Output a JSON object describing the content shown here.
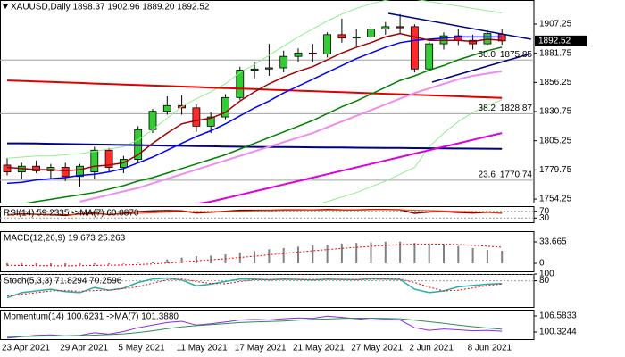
{
  "chart_data": [
    {
      "type": "candlestick",
      "header": "XAUUSD,Daily  1898.37 1902.96 1889.20 1892.52",
      "categories": [
        "23 Apr 2021",
        null,
        null,
        null,
        "29 Apr 2021",
        null,
        null,
        null,
        "5 May 2021",
        null,
        null,
        null,
        "11 May 2021",
        null,
        null,
        null,
        "17 May 2021",
        null,
        null,
        null,
        "21 May 2021",
        null,
        null,
        null,
        "27 May 2021",
        null,
        null,
        null,
        "2 Jun 2021",
        null,
        null,
        null,
        "8 Jun 2021",
        null,
        null
      ],
      "open": [
        1784,
        1778,
        1783,
        1779,
        1782,
        1774,
        1778,
        1797,
        1782,
        1789,
        1815,
        1831,
        1836,
        1834,
        1818,
        1826,
        1843,
        1867,
        1868,
        1869,
        1879,
        1882,
        1881,
        1898,
        1895,
        1896,
        1903,
        1905,
        1905,
        1868,
        1890,
        1897,
        1893,
        1890,
        1898.37
      ],
      "high": [
        1790,
        1786,
        1788,
        1785,
        1786,
        1785,
        1800,
        1799,
        1792,
        1818,
        1833,
        1844,
        1845,
        1837,
        1830,
        1846,
        1870,
        1874,
        1890,
        1884,
        1886,
        1890,
        1900,
        1912,
        1903,
        1905,
        1909,
        1916,
        1907,
        1892,
        1900,
        1903,
        1898,
        1902,
        1902.96
      ],
      "low": [
        1775,
        1772,
        1777,
        1772,
        1770,
        1765,
        1772,
        1778,
        1777,
        1786,
        1812,
        1828,
        1828,
        1813,
        1812,
        1824,
        1841,
        1860,
        1862,
        1865,
        1874,
        1874,
        1878,
        1891,
        1888,
        1893,
        1898,
        1899,
        1865,
        1866,
        1885,
        1889,
        1885,
        1889,
        1889.2
      ],
      "close": [
        1778,
        1783,
        1779,
        1782,
        1774,
        1783,
        1797,
        1782,
        1789,
        1815,
        1831,
        1836,
        1834,
        1818,
        1826,
        1843,
        1867,
        1868,
        1869,
        1879,
        1882,
        1881,
        1898,
        1895,
        1896,
        1903,
        1905,
        1904,
        1868,
        1890,
        1897,
        1893,
        1890,
        1899,
        1892.52
      ],
      "up_color": "#32cd32",
      "down_color": "#ff2a2a",
      "series": [
        {
          "type": "line",
          "color": "#90ee90",
          "width": 1,
          "values": [
            1790,
            1791,
            1792,
            1792,
            1793,
            1794,
            1796,
            1798,
            1800,
            1806,
            1815,
            1825,
            1835,
            1842,
            1848,
            1855,
            1865,
            1872,
            1880,
            1888,
            1896,
            1903,
            1910,
            1916,
            1921,
            1925,
            1928,
            1930,
            1929,
            1927,
            1925,
            1923,
            1921,
            1919,
            1917
          ]
        },
        {
          "type": "line",
          "color": "#90ee90",
          "width": 1,
          "values": [
            null,
            null,
            null,
            null,
            null,
            null,
            null,
            null,
            null,
            null,
            null,
            null,
            null,
            null,
            null,
            null,
            null,
            null,
            null,
            null,
            null,
            1749,
            1752,
            1756,
            1760,
            1765,
            1770,
            1776,
            1782,
            1800,
            1812,
            1822,
            1830,
            1836,
            1841
          ]
        },
        {
          "type": "line",
          "color": "#000080",
          "width": 2,
          "values": [
            1803,
            1803,
            1802.8,
            1802.6,
            1802.4,
            1802.2,
            1802,
            1801.8,
            1801.6,
            1801.4,
            1801.2,
            1801,
            1800.8,
            1800.6,
            1800.4,
            1800.2,
            1800,
            1799.9,
            1799.8,
            1799.7,
            1799.6,
            1799.5,
            1799.4,
            1799.3,
            1799.2,
            1799.1,
            1799,
            1798.9,
            1798.8,
            1798.7,
            1798.6,
            1798.5,
            1798.4,
            1798.3,
            1798.2
          ]
        },
        {
          "type": "line",
          "color": "#e00000",
          "width": 2,
          "values": [
            1858,
            1857.6,
            1857.1,
            1856.7,
            1856.2,
            1855.8,
            1855.3,
            1854.9,
            1854.4,
            1854,
            1853.5,
            1853.1,
            1852.6,
            1852.2,
            1851.7,
            1851.3,
            1850.8,
            1850.4,
            1849.9,
            1849.5,
            1849,
            1848.6,
            1848.1,
            1847.7,
            1847.2,
            1846.8,
            1846.3,
            1845.9,
            1845.4,
            1845,
            1844.5,
            1844.1,
            1843.6,
            1843.2,
            1842.7
          ]
        },
        {
          "type": "line",
          "color": "#dd00dd",
          "width": 2,
          "values": [
            null,
            null,
            null,
            null,
            null,
            null,
            null,
            null,
            null,
            null,
            null,
            null,
            null,
            1750,
            1752,
            1755,
            1758,
            1761,
            1764,
            1767,
            1770,
            1773,
            1776,
            1779,
            1782,
            1785,
            1788,
            1791,
            1794,
            1797,
            1800,
            1803,
            1806,
            1809,
            1812
          ]
        },
        {
          "type": "line",
          "color": "#f08cf0",
          "width": 2,
          "values": [
            null,
            null,
            null,
            null,
            null,
            1752,
            1755,
            1758,
            1761,
            1764,
            1768,
            1772,
            1776,
            1780,
            1784,
            1788,
            1792,
            1796,
            1800,
            1804,
            1808,
            1812,
            1817,
            1822,
            1827,
            1832,
            1837,
            1842,
            1847,
            1851,
            1855,
            1859,
            1862,
            1864,
            1866
          ]
        },
        {
          "type": "line",
          "color": "#008000",
          "width": 1.5,
          "values": [
            null,
            1750,
            1752,
            1754,
            1756,
            1758,
            1760,
            1763,
            1766,
            1770,
            1773,
            1777,
            1781,
            1785,
            1789,
            1793,
            1798,
            1803,
            1808,
            1813,
            1818,
            1823,
            1829,
            1835,
            1840,
            1846,
            1852,
            1858,
            1862,
            1867,
            1871,
            1876,
            1880,
            1884,
            1887
          ]
        },
        {
          "type": "line",
          "color": "#0000ff",
          "width": 1.5,
          "values": [
            1768,
            1769,
            1771,
            1772,
            1773,
            1775,
            1776,
            1778,
            1781,
            1786,
            1791,
            1797,
            1803,
            1809,
            1814,
            1820,
            1827,
            1834,
            1840,
            1847,
            1853,
            1859,
            1865,
            1871,
            1877,
            1882,
            1887,
            1891,
            1893,
            1894,
            1895,
            1896,
            1896,
            1896,
            1896
          ]
        },
        {
          "type": "line",
          "color": "#a00000",
          "width": 1.5,
          "values": [
            1782,
            1781,
            1780,
            1780,
            1779,
            1780,
            1783,
            1784,
            1786,
            1793,
            1803,
            1812,
            1820,
            1823,
            1825,
            1830,
            1840,
            1848,
            1855,
            1861,
            1866,
            1870,
            1876,
            1882,
            1887,
            1891,
            1896,
            1899,
            1896,
            1893,
            1893,
            1893,
            1892,
            1894,
            1893
          ]
        }
      ],
      "ylim": [
        1750.4,
        1928.3
      ],
      "yticks": [
        1907.25,
        1881.75,
        1856.25,
        1830.75,
        1805.25,
        1779.75,
        1754.25
      ],
      "fib_levels": [
        {
          "ratio": "50.0",
          "price": 1875.85
        },
        {
          "ratio": "38.2",
          "price": 1828.87
        },
        {
          "ratio": "23.6",
          "price": 1770.74
        }
      ],
      "trendlines": [
        {
          "x": [
            26.2,
            36
          ],
          "values": [
            1916.6,
            1894
          ]
        },
        {
          "x": [
            29.2,
            36
          ],
          "values": [
            1856.5,
            1881.5
          ]
        }
      ],
      "trendline_color": "#000080"
    },
    {
      "type": "line",
      "header": "RSI(14) 59.2335 ->MA(7) 60.0870",
      "ylim": [
        0,
        100
      ],
      "yticks": [
        30,
        70
      ],
      "grid": true,
      "series": [
        {
          "color": "#8b0000",
          "width": 1.5,
          "values": [
            48,
            55,
            52,
            50,
            45,
            55,
            60,
            50,
            58,
            68,
            72,
            74,
            72,
            60,
            64,
            70,
            76,
            76,
            76,
            78,
            78,
            77,
            80,
            78,
            78,
            80,
            80,
            79,
            58,
            66,
            68,
            63,
            60,
            64,
            59.2335
          ]
        },
        {
          "color": "#ff4500",
          "width": 1,
          "values": [
            50,
            51,
            52,
            52,
            50,
            51,
            53,
            53,
            54,
            58,
            61,
            64,
            67,
            67,
            67,
            68,
            70,
            72,
            74,
            75,
            76,
            77,
            78,
            78,
            78,
            79,
            79,
            79,
            76,
            74,
            72,
            70,
            67,
            65,
            60.087
          ]
        }
      ]
    },
    {
      "type": "bar",
      "header": "MACD(12,26,9) 19.673 25.263",
      "ylim": [
        -14,
        50.5
      ],
      "yticks": [
        33.665,
        0
      ],
      "grid": false,
      "series": [
        {
          "color": "#808080",
          "values": [
            -4,
            -4,
            -4,
            -4,
            -4,
            -3,
            -2,
            -2,
            -1,
            1,
            3,
            6,
            9,
            11,
            12,
            14,
            17,
            19,
            22,
            24,
            26,
            28,
            29,
            31,
            32,
            33,
            34,
            34,
            32,
            31,
            30,
            27,
            24,
            21,
            19.673
          ]
        },
        {
          "type": "line",
          "dash": true,
          "color": "#ff0000",
          "width": 1,
          "values": [
            -3,
            -3.5,
            -3.8,
            -3.9,
            -4,
            -3.8,
            -3.4,
            -3,
            -2.6,
            -1.9,
            -0.9,
            0.4,
            2.1,
            3.9,
            5.5,
            7.2,
            9.1,
            11.1,
            13.3,
            15.4,
            17.5,
            19.6,
            21.5,
            23.4,
            25.1,
            26.7,
            28.2,
            29.4,
            29.9,
            30.2,
            30.1,
            29.5,
            28.4,
            27,
            25.263
          ]
        }
      ]
    },
    {
      "type": "line",
      "header": "Stoch(5,3,3) 71.8294 70.2596",
      "ylim": [
        0,
        100
      ],
      "yticks": [
        80,
        100
      ],
      "grid": true,
      "series": [
        {
          "color": "#20b2aa",
          "width": 1.5,
          "values": [
            30,
            45,
            50,
            55,
            48,
            45,
            60,
            52,
            58,
            75,
            85,
            88,
            82,
            65,
            70,
            78,
            85,
            85,
            83,
            85,
            84,
            82,
            85,
            84,
            83,
            86,
            85,
            84,
            55,
            45,
            50,
            62,
            66,
            70,
            71.8294
          ]
        },
        {
          "color": "#ff0000",
          "dash": true,
          "width": 1,
          "values": [
            35,
            40,
            45,
            50,
            51,
            49,
            51,
            52,
            57,
            62,
            73,
            83,
            85,
            78,
            72,
            71,
            78,
            83,
            84,
            84,
            84,
            84,
            84,
            84,
            84,
            84,
            85,
            85,
            75,
            61,
            50,
            52,
            59,
            66,
            70.2596
          ]
        }
      ]
    },
    {
      "type": "line",
      "header": "Momentum(14) 100.6231 ->MA(7) 101.3880",
      "ylim": [
        97.2,
        109
      ],
      "yticks": [
        106.5833,
        100.3244
      ],
      "grid": false,
      "series": [
        {
          "color": "#8a2be2",
          "width": 1,
          "values": [
            98,
            98.5,
            99,
            99.2,
            98.8,
            99,
            100,
            99.5,
            100.5,
            102,
            103,
            104,
            104.5,
            103,
            103.5,
            104.2,
            105,
            105.2,
            105,
            105.5,
            105.8,
            105.6,
            106.5,
            106,
            105.5,
            105,
            105.3,
            105,
            102,
            101,
            101.5,
            101.2,
            100.8,
            101,
            100.6231
          ]
        },
        {
          "color": "#2e8b57",
          "width": 1,
          "values": [
            98.5,
            98.6,
            98.7,
            98.8,
            98.8,
            98.9,
            99.1,
            99.3,
            99.6,
            100.1,
            100.8,
            101.6,
            102.3,
            102.8,
            103.2,
            103.6,
            104,
            104.2,
            104.4,
            104.6,
            104.9,
            105.2,
            105.4,
            105.6,
            105.7,
            105.7,
            105.6,
            105.5,
            104.9,
            104.3,
            103.7,
            103,
            102.4,
            101.9,
            101.388
          ]
        }
      ]
    }
  ]
}
